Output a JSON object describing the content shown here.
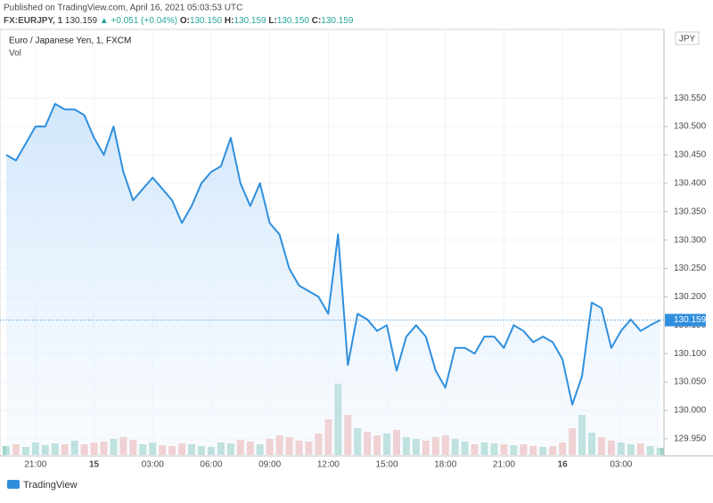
{
  "header": {
    "published": "Published on TradingView.com, April 16, 2021 05:03:53 UTC",
    "symbol": "FX:EURJPY, 1",
    "last": "130.159",
    "arrow": "▲",
    "change": "+0.051 (+0.04%)",
    "ohlc": [
      {
        "key": "O:",
        "value": "130.150"
      },
      {
        "key": "H:",
        "value": "130.159"
      },
      {
        "key": "L:",
        "value": "130.150"
      },
      {
        "key": "C:",
        "value": "130.159"
      }
    ]
  },
  "chart_data": {
    "type": "area",
    "title": "Euro / Japanese Yen, 1, FXCM",
    "volume_label": "Vol",
    "currency": "JPY",
    "x": [
      null,
      null,
      null,
      "21:00",
      null,
      null,
      null,
      null,
      null,
      "15",
      null,
      null,
      null,
      null,
      null,
      "03:00",
      null,
      null,
      null,
      null,
      null,
      "06:00",
      null,
      null,
      null,
      null,
      null,
      "09:00",
      null,
      null,
      null,
      null,
      null,
      "12:00",
      null,
      null,
      null,
      null,
      null,
      "15:00",
      null,
      null,
      null,
      null,
      null,
      "18:00",
      null,
      null,
      null,
      null,
      null,
      "21:00",
      null,
      null,
      null,
      null,
      null,
      "16",
      null,
      null,
      null,
      null,
      null,
      "03:00",
      null,
      null,
      null,
      null
    ],
    "series": [
      {
        "name": "EURJPY",
        "color": "#2f8fdd",
        "values": [
          130.45,
          130.44,
          130.47,
          130.5,
          130.5,
          130.54,
          130.53,
          130.53,
          130.52,
          130.48,
          130.45,
          130.5,
          130.42,
          130.37,
          130.39,
          130.41,
          130.39,
          130.37,
          130.33,
          130.36,
          130.4,
          130.42,
          130.43,
          130.48,
          130.4,
          130.36,
          130.4,
          130.33,
          130.31,
          130.25,
          130.22,
          130.21,
          130.2,
          130.17,
          130.31,
          130.08,
          130.17,
          130.16,
          130.14,
          130.15,
          130.07,
          130.13,
          130.15,
          130.13,
          130.07,
          130.04,
          130.11,
          130.11,
          130.1,
          130.13,
          130.13,
          130.11,
          130.15,
          130.14,
          130.12,
          130.13,
          130.12,
          130.09,
          130.01,
          130.06,
          130.19,
          130.18,
          130.11,
          130.14,
          130.16,
          130.14,
          130.15,
          130.159
        ]
      }
    ],
    "volume": {
      "up_color": "#9fd3c9",
      "down_color": "#f2b8b5",
      "values": [
        10,
        12,
        9,
        14,
        11,
        13,
        12,
        16,
        12,
        14,
        15,
        18,
        20,
        17,
        12,
        14,
        11,
        10,
        13,
        12,
        10,
        9,
        14,
        13,
        17,
        15,
        12,
        18,
        22,
        20,
        16,
        15,
        24,
        40,
        80,
        45,
        30,
        26,
        22,
        24,
        28,
        20,
        18,
        16,
        20,
        22,
        18,
        15,
        12,
        14,
        13,
        12,
        11,
        12,
        10,
        9,
        10,
        14,
        30,
        45,
        25,
        20,
        16,
        14,
        12,
        13,
        10,
        8
      ]
    },
    "last_value": 130.159,
    "ylim": [
      129.92,
      130.671
    ],
    "yticks": [
      {
        "value": 129.95,
        "label": "129.950"
      },
      {
        "value": 130.0,
        "label": "130.000"
      },
      {
        "value": 130.05,
        "label": "130.050"
      },
      {
        "value": 130.1,
        "label": "130.100"
      },
      {
        "value": 130.15,
        "label": "130.150"
      },
      {
        "value": 130.2,
        "label": "130.200"
      },
      {
        "value": 130.25,
        "label": "130.250"
      },
      {
        "value": 130.3,
        "label": "130.300"
      },
      {
        "value": 130.35,
        "label": "130.350"
      },
      {
        "value": 130.4,
        "label": "130.400"
      },
      {
        "value": 130.45,
        "label": "130.450"
      },
      {
        "value": 130.5,
        "label": "130.500"
      },
      {
        "value": 130.55,
        "label": "130.550"
      }
    ],
    "grid": true
  },
  "footer": {
    "brand": "TradingView"
  }
}
